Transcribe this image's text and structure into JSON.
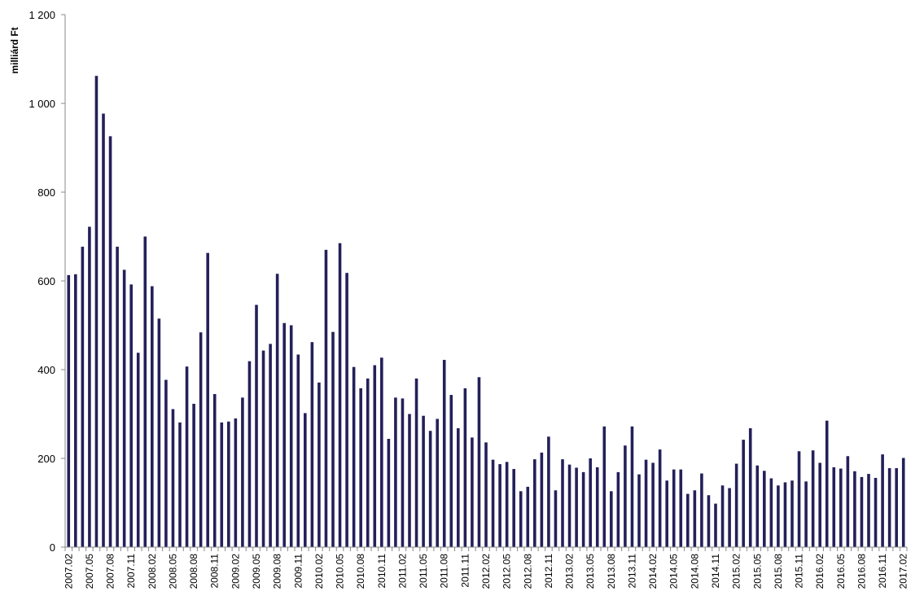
{
  "chart_data": {
    "type": "bar",
    "title": "",
    "xlabel": "",
    "ylabel": "milliárd Ft",
    "ylim": [
      0,
      1200
    ],
    "yticks": [
      0,
      200,
      400,
      600,
      800,
      1000,
      1200
    ],
    "ytick_labels": [
      "0",
      "200",
      "400",
      "600",
      "800",
      "1 000",
      "1 200"
    ],
    "grid": false,
    "legend": "none",
    "bar_color": "#23205a",
    "categories": [
      "2007.02",
      "2007.03",
      "2007.04",
      "2007.05",
      "2007.06",
      "2007.07",
      "2007.08",
      "2007.09",
      "2007.10",
      "2007.11",
      "2007.12",
      "2008.01",
      "2008.02",
      "2008.03",
      "2008.04",
      "2008.05",
      "2008.06",
      "2008.07",
      "2008.08",
      "2008.09",
      "2008.10",
      "2008.11",
      "2008.12",
      "2009.01",
      "2009.02",
      "2009.03",
      "2009.04",
      "2009.05",
      "2009.06",
      "2009.07",
      "2009.08",
      "2009.09",
      "2009.10",
      "2009.11",
      "2009.12",
      "2010.01",
      "2010.02",
      "2010.03",
      "2010.04",
      "2010.05",
      "2010.06",
      "2010.07",
      "2010.08",
      "2010.09",
      "2010.10",
      "2010.11",
      "2010.12",
      "2011.01",
      "2011.02",
      "2011.03",
      "2011.04",
      "2011.05",
      "2011.06",
      "2011.07",
      "2011.08",
      "2011.09",
      "2011.10",
      "2011.11",
      "2011.12",
      "2012.01",
      "2012.02",
      "2012.03",
      "2012.04",
      "2012.05",
      "2012.06",
      "2012.07",
      "2012.08",
      "2012.09",
      "2012.10",
      "2012.11",
      "2012.12",
      "2013.01",
      "2013.02",
      "2013.03",
      "2013.04",
      "2013.05",
      "2013.06",
      "2013.07",
      "2013.08",
      "2013.09",
      "2013.10",
      "2013.11",
      "2013.12",
      "2014.01",
      "2014.02",
      "2014.03",
      "2014.04",
      "2014.05",
      "2014.06",
      "2014.07",
      "2014.08",
      "2014.09",
      "2014.10",
      "2014.11",
      "2014.12",
      "2015.01",
      "2015.02",
      "2015.03",
      "2015.04",
      "2015.05",
      "2015.06",
      "2015.07",
      "2015.08",
      "2015.09",
      "2015.10",
      "2015.11",
      "2015.12",
      "2016.01",
      "2016.02",
      "2016.03",
      "2016.04",
      "2016.05",
      "2016.06",
      "2016.07",
      "2016.08",
      "2016.09",
      "2016.10",
      "2016.11",
      "2016.12",
      "2017.01",
      "2017.02"
    ],
    "x_tick_labels": [
      "2007.02",
      "2007.05",
      "2007.08",
      "2007.11",
      "2008.02",
      "2008.05",
      "2008.08",
      "2008.11",
      "2009.02",
      "2009.05",
      "2009.08",
      "2009.11",
      "2010.02",
      "2010.05",
      "2010.08",
      "2010.11",
      "2011.02",
      "2011.05",
      "2011.08",
      "2011.11",
      "2012.02",
      "2012.05",
      "2012.08",
      "2012.11",
      "2013.02",
      "2013.05",
      "2013.08",
      "2013.11",
      "2014.02",
      "2014.05",
      "2014.08",
      "2014.11",
      "2015.02",
      "2015.05",
      "2015.08",
      "2015.11",
      "2016.02",
      "2016.05",
      "2016.08",
      "2016.11",
      "2017.02"
    ],
    "values": [
      613,
      615,
      677,
      722,
      1062,
      977,
      926,
      677,
      625,
      592,
      438,
      700,
      588,
      515,
      377,
      311,
      281,
      407,
      323,
      484,
      663,
      345,
      281,
      283,
      290,
      337,
      419,
      546,
      443,
      458,
      616,
      505,
      500,
      434,
      302,
      462,
      371,
      670,
      485,
      685,
      618,
      406,
      358,
      380,
      410,
      427,
      244,
      337,
      335,
      300,
      380,
      296,
      262,
      289,
      422,
      343,
      268,
      358,
      247,
      383,
      236,
      197,
      187,
      192,
      176,
      126,
      136,
      198,
      213,
      249,
      128,
      198,
      186,
      179,
      169,
      200,
      180,
      272,
      126,
      169,
      229,
      272,
      164,
      197,
      190,
      220,
      150,
      175,
      175,
      120,
      128,
      166,
      117,
      98,
      139,
      133,
      188,
      242,
      268,
      184,
      172,
      155,
      139,
      146,
      150,
      216,
      148,
      218,
      190,
      285,
      180,
      177,
      205,
      171,
      158,
      165,
      156,
      209,
      178,
      178,
      201
    ]
  }
}
